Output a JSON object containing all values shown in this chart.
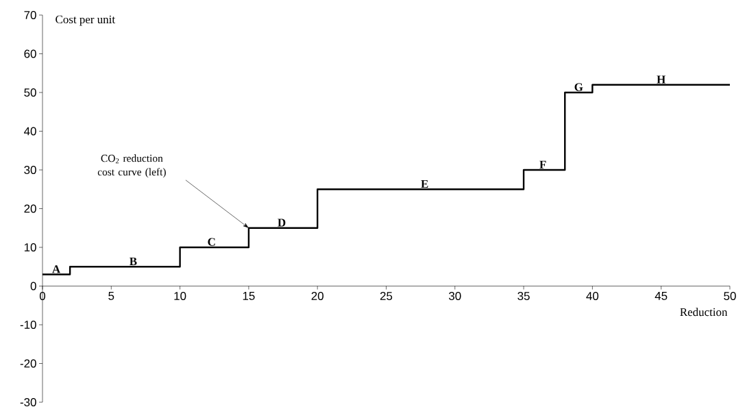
{
  "chart_data": {
    "type": "step",
    "xlabel": "Reduction",
    "ylabel": "Cost per unit",
    "x": [
      0,
      2,
      10,
      15,
      20,
      35,
      38,
      40,
      50
    ],
    "series": [
      {
        "color": "#000000",
        "values": [
          3,
          5,
          10,
          15,
          25,
          30,
          50,
          52,
          52
        ]
      }
    ],
    "xlim": [
      0,
      50
    ],
    "xticks": [
      0,
      5,
      10,
      15,
      20,
      25,
      30,
      35,
      40,
      45,
      50
    ],
    "ylim": [
      -30,
      70
    ],
    "yticks": [
      -30,
      -20,
      -10,
      0,
      10,
      20,
      30,
      40,
      50,
      60,
      70
    ],
    "grid": false,
    "annotations": [
      {
        "text": "A",
        "x": 1,
        "y": 3
      },
      {
        "text": "B",
        "x": 6.6,
        "y": 5
      },
      {
        "text": "C",
        "x": 12.3,
        "y": 10
      },
      {
        "text": "D",
        "x": 17.4,
        "y": 15
      },
      {
        "text": "E",
        "x": 27.8,
        "y": 25
      },
      {
        "text": "F",
        "x": 36.4,
        "y": 30
      },
      {
        "text": "G",
        "x": 39,
        "y": 50
      },
      {
        "text": "H",
        "x": 45,
        "y": 52
      },
      "CO$_{2}$ reduction cost curve (left)"
    ]
  }
}
